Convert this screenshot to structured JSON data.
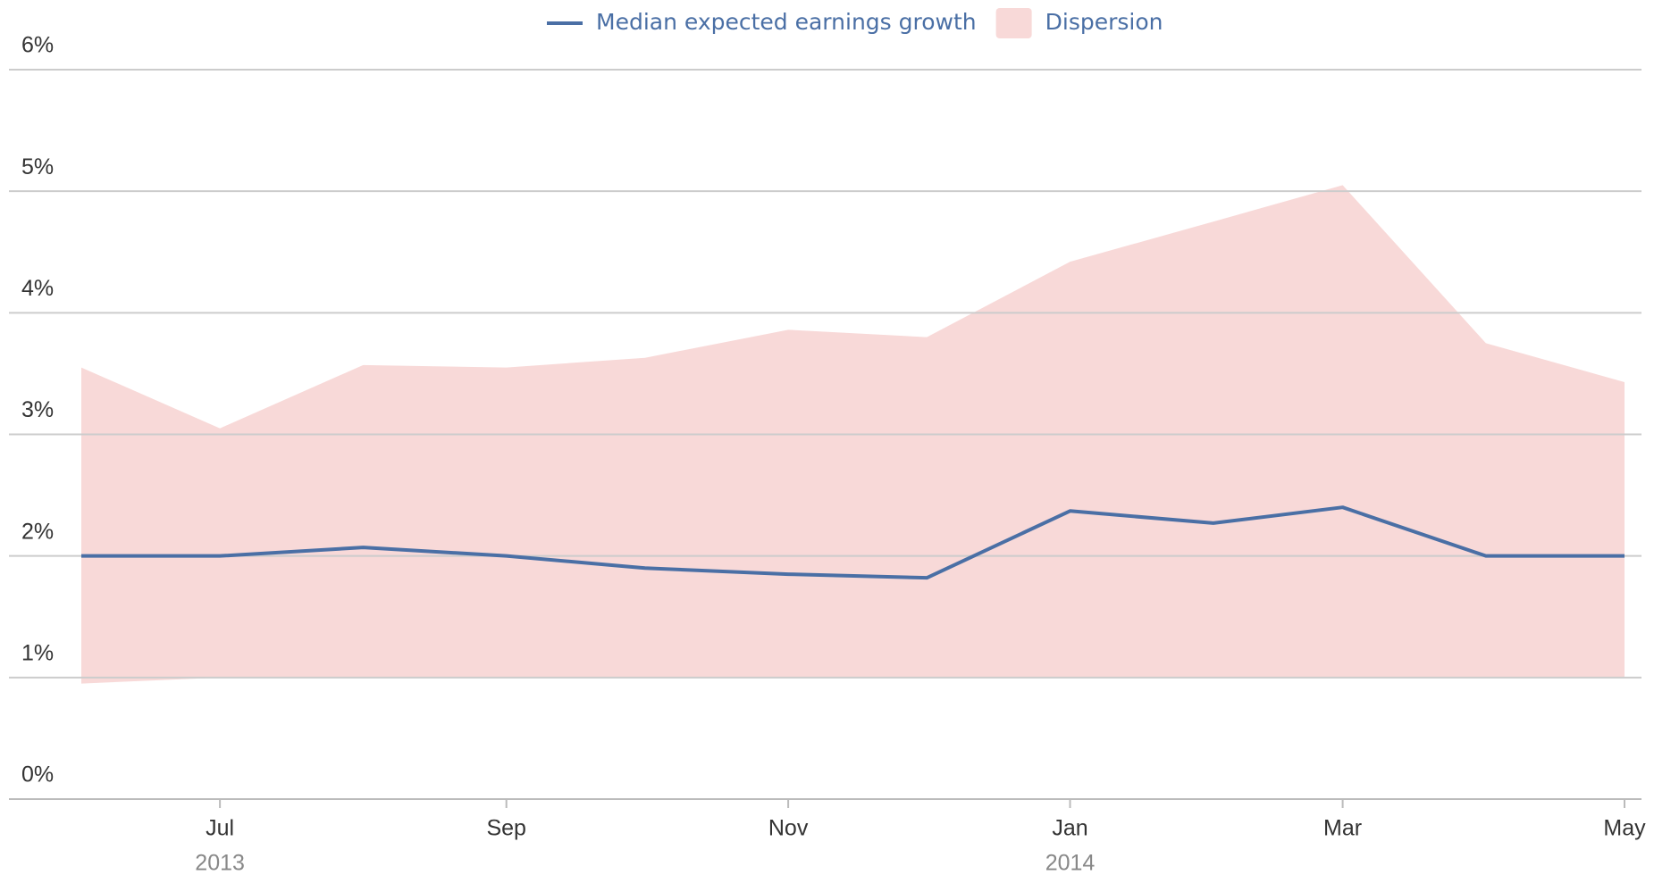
{
  "chart_data": {
    "type": "line-band",
    "x": [
      "2013-06",
      "2013-07",
      "2013-08",
      "2013-09",
      "2013-10",
      "2013-11",
      "2013-12",
      "2014-01",
      "2014-02",
      "2014-03",
      "2014-04",
      "2014-05"
    ],
    "xlim": [
      "2013-06",
      "2014-05"
    ],
    "xticks": [
      {
        "value": "2013-07",
        "label": "Jul"
      },
      {
        "value": "2013-09",
        "label": "Sep"
      },
      {
        "value": "2013-11",
        "label": "Nov"
      },
      {
        "value": "2014-01",
        "label": "Jan"
      },
      {
        "value": "2014-03",
        "label": "Mar"
      },
      {
        "value": "2014-05",
        "label": "May"
      }
    ],
    "xtick_years": [
      {
        "value": "2013-07",
        "label": "2013"
      },
      {
        "value": "2014-01",
        "label": "2014"
      }
    ],
    "ylim": [
      0,
      6
    ],
    "yticks": [
      {
        "value": 0,
        "label": "0%"
      },
      {
        "value": 1,
        "label": "1%"
      },
      {
        "value": 2,
        "label": "2%"
      },
      {
        "value": 3,
        "label": "3%"
      },
      {
        "value": 4,
        "label": "4%"
      },
      {
        "value": 5,
        "label": "5%"
      },
      {
        "value": 6,
        "label": "6%"
      }
    ],
    "grid": true,
    "legend": "top",
    "series": [
      {
        "name": "Median expected earnings growth",
        "color": "#4a6fa5",
        "values": [
          2.0,
          2.0,
          2.07,
          2.0,
          1.9,
          1.85,
          1.82,
          2.37,
          2.27,
          2.4,
          2.0,
          2.0
        ]
      },
      {
        "name": "Dispersion",
        "color": "#f8d9d8",
        "lower": [
          0.95,
          1.0,
          1.0,
          1.0,
          1.0,
          1.0,
          1.0,
          1.0,
          1.0,
          1.0,
          1.0,
          1.0
        ],
        "upper": [
          3.55,
          3.05,
          3.57,
          3.55,
          3.63,
          3.86,
          3.8,
          4.42,
          4.75,
          5.05,
          3.75,
          3.43
        ]
      }
    ]
  }
}
